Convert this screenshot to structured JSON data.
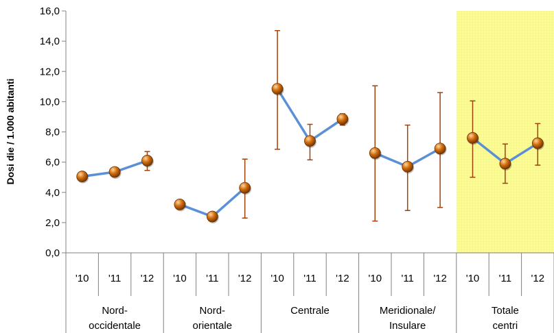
{
  "chart_data": {
    "type": "line",
    "ylabel": "Dosi die / 1.000 abitanti",
    "xlabel": "",
    "ylim": [
      0,
      16
    ],
    "yticks": [
      "0,0",
      "2,0",
      "4,0",
      "6,0",
      "8,0",
      "10,0",
      "12,0",
      "14,0",
      "16,0"
    ],
    "grid": false,
    "groups": [
      {
        "label_lines": [
          "Nord-",
          "occidentale"
        ],
        "years": [
          "'10",
          "'11",
          "'12"
        ],
        "values": [
          5.05,
          5.35,
          6.1
        ],
        "err_low": [
          null,
          null,
          5.45
        ],
        "err_high": [
          null,
          null,
          6.7
        ]
      },
      {
        "label_lines": [
          "Nord-",
          "orientale"
        ],
        "years": [
          "'10",
          "'11",
          "'12"
        ],
        "values": [
          3.2,
          2.4,
          4.3
        ],
        "err_low": [
          null,
          null,
          2.3
        ],
        "err_high": [
          null,
          null,
          6.2
        ]
      },
      {
        "label_lines": [
          "Centrale"
        ],
        "years": [
          "'10",
          "'11",
          "'12"
        ],
        "values": [
          10.85,
          7.4,
          8.85
        ],
        "err_low": [
          6.85,
          6.15,
          8.45
        ],
        "err_high": [
          14.7,
          8.5,
          9.2
        ]
      },
      {
        "label_lines": [
          "Meridionale/",
          "Insulare"
        ],
        "years": [
          "'10",
          "'11",
          "'12"
        ],
        "values": [
          6.6,
          5.7,
          6.9
        ],
        "err_low": [
          2.1,
          2.8,
          3.0
        ],
        "err_high": [
          11.05,
          8.45,
          10.6
        ]
      },
      {
        "label_lines": [
          "Totale",
          "centri"
        ],
        "years": [
          "'10",
          "'11",
          "'12"
        ],
        "values": [
          7.6,
          5.9,
          7.25
        ],
        "err_low": [
          5.0,
          4.6,
          5.8
        ],
        "err_high": [
          10.05,
          7.2,
          8.55
        ],
        "highlighted": true
      }
    ]
  },
  "colors": {
    "line": "#5b8fd6",
    "marker": "#c8650a",
    "marker_dark": "#6b3000",
    "marker_light": "#ffd7a0",
    "error_bar": "#a0400a",
    "highlight": "#fbfb9c",
    "axis": "#808080"
  }
}
